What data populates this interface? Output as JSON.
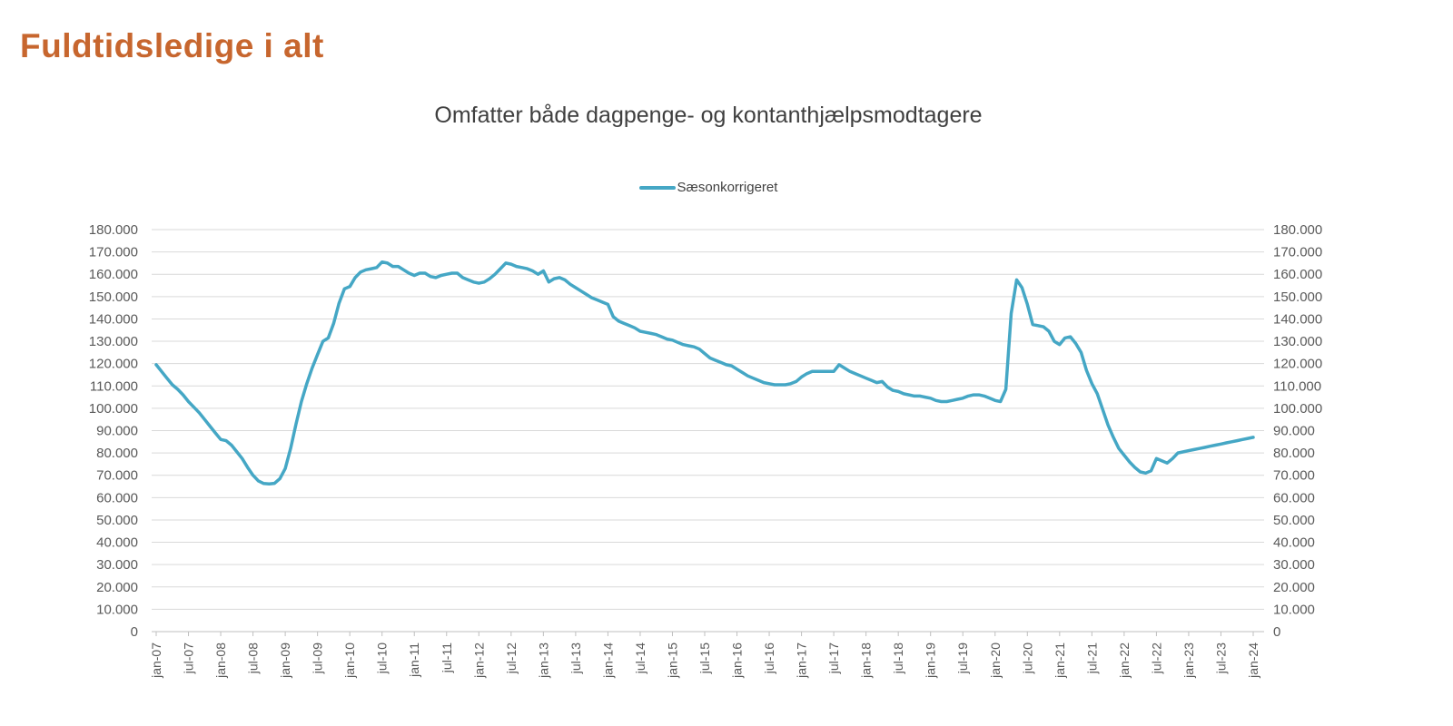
{
  "page_title": "Fuldtidsledige i alt",
  "colors": {
    "title": "#C7662E",
    "line": "#45A7C5",
    "gridline": "#D9D9D9",
    "axis_line": "#BFBFBF",
    "tick_label": "#595959",
    "subtitle_text": "#3F3F3F"
  },
  "chart_data": {
    "type": "line",
    "title": "Omfatter både dagpenge- og kontanthjælpsmodtagere",
    "legend_position": "top-center",
    "grid": "horizontal",
    "ylim": [
      0,
      180000
    ],
    "y_tick_step": 10000,
    "y_ticks": [
      "0",
      "10.000",
      "20.000",
      "30.000",
      "40.000",
      "50.000",
      "60.000",
      "70.000",
      "80.000",
      "90.000",
      "100.000",
      "110.000",
      "120.000",
      "130.000",
      "140.000",
      "150.000",
      "160.000",
      "170.000",
      "180.000"
    ],
    "y_axis_sides": [
      "left",
      "right"
    ],
    "x_tick_labels": [
      "jan-07",
      "jul-07",
      "jan-08",
      "jul-08",
      "jan-09",
      "jul-09",
      "jan-10",
      "jul-10",
      "jan-11",
      "jul-11",
      "jan-12",
      "jul-12",
      "jan-13",
      "jul-13",
      "jan-14",
      "jul-14",
      "jan-15",
      "jul-15",
      "jan-16",
      "jul-16",
      "jan-17",
      "jul-17",
      "jan-18",
      "jul-18",
      "jan-19",
      "jul-19",
      "jan-20",
      "jul-20",
      "jan-21",
      "jul-21",
      "jan-22",
      "jul-22",
      "jan-23",
      "jul-23",
      "jan-24"
    ],
    "x_tick_every_n_months": 6,
    "series": [
      {
        "name": "Sæsonkorrigeret",
        "color": "#45A7C5",
        "start": "jan-07",
        "frequency": "monthly",
        "values": [
          119500,
          116500,
          113500,
          110500,
          108500,
          106000,
          103000,
          100500,
          98000,
          95000,
          92000,
          89000,
          86000,
          85500,
          83500,
          80500,
          77500,
          73500,
          70000,
          67500,
          66300,
          66100,
          66400,
          68500,
          73000,
          82000,
          93000,
          103000,
          111000,
          118000,
          124000,
          130000,
          131500,
          138000,
          147000,
          153500,
          154500,
          158500,
          161000,
          162000,
          162500,
          163000,
          165500,
          165000,
          163500,
          163500,
          162000,
          160500,
          159500,
          160500,
          160500,
          159000,
          158500,
          159500,
          160000,
          160500,
          160500,
          158500,
          157500,
          156500,
          156000,
          156500,
          158000,
          160000,
          162500,
          165000,
          164500,
          163500,
          163000,
          162500,
          161500,
          160000,
          161500,
          156500,
          158000,
          158500,
          157500,
          155500,
          154000,
          152500,
          151000,
          149500,
          148500,
          147500,
          146500,
          141000,
          139000,
          138000,
          137000,
          136000,
          134500,
          134000,
          133500,
          133000,
          132000,
          131000,
          130500,
          129500,
          128500,
          128000,
          127500,
          126500,
          124500,
          122500,
          121500,
          120500,
          119500,
          119000,
          117500,
          116000,
          114500,
          113500,
          112500,
          111500,
          111000,
          110500,
          110500,
          110500,
          111000,
          112000,
          114000,
          115500,
          116500,
          116500,
          116500,
          116500,
          116500,
          119500,
          118000,
          116500,
          115500,
          114500,
          113500,
          112500,
          111500,
          112000,
          109500,
          108000,
          107500,
          106500,
          106000,
          105500,
          105500,
          105000,
          104500,
          103500,
          103000,
          103000,
          103500,
          104000,
          104500,
          105500,
          106000,
          106000,
          105500,
          104500,
          103500,
          103000,
          108500,
          142500,
          157500,
          154000,
          146500,
          137500,
          137000,
          136500,
          134500,
          130000,
          128500,
          131500,
          132000,
          129000,
          125000,
          117000,
          111000,
          106500,
          99500,
          92500,
          87000,
          82000,
          79000,
          76000,
          73500,
          71500,
          71000,
          72000,
          77500,
          76500,
          75500,
          77500,
          80000,
          80500,
          81000,
          81500,
          82000,
          82500,
          83000,
          83500,
          84000,
          84500,
          85000,
          85500,
          86000,
          86500,
          87000
        ]
      }
    ]
  }
}
